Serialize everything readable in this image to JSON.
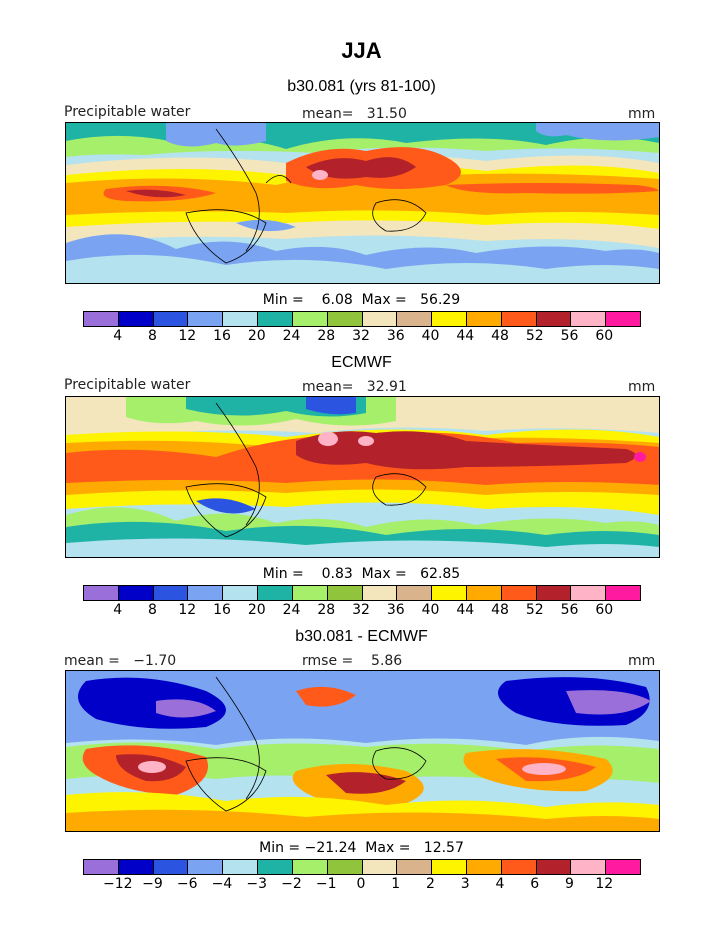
{
  "title": "JJA",
  "variable_label": "Precipitable water",
  "units": "mm",
  "colors": {
    "abs": [
      "#9b6fd9",
      "#0000c8",
      "#2b55e0",
      "#7aa4f2",
      "#b4e2ee",
      "#1fb3a6",
      "#a6ef6a",
      "#8fc43c",
      "#f3e6bd",
      "#d9b38c",
      "#fff400",
      "#ffaa00",
      "#ff5a1a",
      "#b3222a",
      "#ffb3c7",
      "#ff1aa0"
    ],
    "diff": [
      "#9b6fd9",
      "#0000c8",
      "#2b55e0",
      "#7aa4f2",
      "#b4e2ee",
      "#1fb3a6",
      "#a6ef6a",
      "#8fc43c",
      "#f3e6bd",
      "#d9b38c",
      "#fff400",
      "#ffaa00",
      "#ff5a1a",
      "#b3222a",
      "#ffb3c7",
      "#ff1aa0"
    ]
  },
  "panels": [
    {
      "subtitle": "b30.081 (yrs 81-100)",
      "left_label": "Precipitable water",
      "center_label": "mean=   31.50",
      "right_label": "mm",
      "minmax": "Min =    6.08  Max =   56.29",
      "ticks": [
        "4",
        "8",
        "12",
        "16",
        "20",
        "24",
        "28",
        "32",
        "36",
        "40",
        "44",
        "48",
        "52",
        "56",
        "60"
      ]
    },
    {
      "subtitle": "ECMWF",
      "left_label": "Precipitable water",
      "center_label": "mean=   32.91",
      "right_label": "mm",
      "minmax": "Min =    0.83  Max =   62.85",
      "ticks": [
        "4",
        "8",
        "12",
        "16",
        "20",
        "24",
        "28",
        "32",
        "36",
        "40",
        "44",
        "48",
        "52",
        "56",
        "60"
      ]
    },
    {
      "subtitle": "b30.081 - ECMWF",
      "left_label": "mean =   −1.70",
      "center_label": "rmse =    5.86",
      "right_label": "mm",
      "minmax": "Min = −21.24  Max =   12.57",
      "ticks": [
        "−12",
        "−9",
        "−6",
        "−4",
        "−3",
        "−2",
        "−1",
        "0",
        "1",
        "2",
        "3",
        "4",
        "6",
        "9",
        "12"
      ]
    }
  ],
  "chart_data": [
    {
      "type": "heatmap",
      "title": "b30.081 (yrs 81-100)",
      "variable": "Precipitable water",
      "units": "mm",
      "mean": 31.5,
      "min": 6.08,
      "max": 56.29,
      "contour_levels": [
        4,
        8,
        12,
        16,
        20,
        24,
        28,
        32,
        36,
        40,
        44,
        48,
        52,
        56,
        60
      ]
    },
    {
      "type": "heatmap",
      "title": "ECMWF",
      "variable": "Precipitable water",
      "units": "mm",
      "mean": 32.91,
      "min": 0.83,
      "max": 62.85,
      "contour_levels": [
        4,
        8,
        12,
        16,
        20,
        24,
        28,
        32,
        36,
        40,
        44,
        48,
        52,
        56,
        60
      ]
    },
    {
      "type": "heatmap",
      "title": "b30.081 - ECMWF",
      "units": "mm",
      "mean": -1.7,
      "rmse": 5.86,
      "min": -21.24,
      "max": 12.57,
      "contour_levels": [
        -12,
        -9,
        -6,
        -4,
        -3,
        -2,
        -1,
        0,
        1,
        2,
        3,
        4,
        6,
        9,
        12
      ]
    }
  ]
}
